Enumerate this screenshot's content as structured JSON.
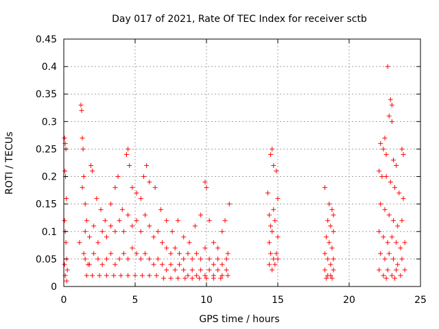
{
  "chart_data": {
    "type": "scatter",
    "title": "Day 017 of 2021, Rate Of TEC Index for receiver sctb",
    "xlabel": "GPS time / hours",
    "ylabel": "ROTI / TECUs",
    "xlim": [
      0,
      25
    ],
    "ylim": [
      0,
      0.45
    ],
    "xticks": [
      0,
      5,
      10,
      15,
      20,
      25
    ],
    "yticks": [
      0,
      0.05,
      0.1,
      0.15,
      0.2,
      0.25,
      0.3,
      0.35,
      0.4,
      0.45
    ],
    "xtick_labels": [
      "0",
      "5",
      "10",
      "15",
      "20",
      "25"
    ],
    "ytick_labels": [
      "0",
      "0.05",
      "0.1",
      "0.15",
      "0.2",
      "0.25",
      "0.3",
      "0.35",
      "0.4",
      "0.45"
    ],
    "grid": true,
    "marker": "plus",
    "color": "#ff0000",
    "series": [
      {
        "points": [
          [
            0.05,
            0.27
          ],
          [
            0.1,
            0.26
          ],
          [
            0.15,
            0.25
          ],
          [
            0.08,
            0.21
          ],
          [
            0.12,
            0.2
          ],
          [
            0.18,
            0.16
          ],
          [
            0.05,
            0.12
          ],
          [
            0.1,
            0.1
          ],
          [
            0.15,
            0.08
          ],
          [
            0.2,
            0.05
          ],
          [
            0.05,
            0.04
          ],
          [
            0.1,
            0.02
          ],
          [
            0.2,
            0.01
          ],
          [
            0.25,
            0.03
          ],
          [
            1.2,
            0.33
          ],
          [
            1.25,
            0.32
          ],
          [
            1.3,
            0.27
          ],
          [
            1.35,
            0.25
          ],
          [
            1.4,
            0.2
          ],
          [
            1.3,
            0.18
          ],
          [
            1.5,
            0.15
          ],
          [
            1.6,
            0.12
          ],
          [
            1.1,
            0.08
          ],
          [
            1.4,
            0.06
          ],
          [
            1.7,
            0.04
          ],
          [
            1.9,
            0.22
          ],
          [
            2.0,
            0.21
          ],
          [
            2.3,
            0.16
          ],
          [
            2.6,
            0.14
          ],
          [
            2.9,
            0.12
          ],
          [
            3.3,
            0.15
          ],
          [
            3.6,
            0.18
          ],
          [
            3.8,
            0.2
          ],
          [
            4.1,
            0.14
          ],
          [
            4.4,
            0.24
          ],
          [
            4.5,
            0.25
          ],
          [
            4.6,
            0.22
          ],
          [
            4.8,
            0.18
          ],
          [
            5.1,
            0.17
          ],
          [
            5.4,
            0.16
          ],
          [
            5.6,
            0.2
          ],
          [
            5.8,
            0.22
          ],
          [
            6.0,
            0.19
          ],
          [
            6.4,
            0.18
          ],
          [
            6.8,
            0.14
          ],
          [
            7.2,
            0.12
          ],
          [
            7.6,
            0.1
          ],
          [
            8.0,
            0.12
          ],
          [
            8.4,
            0.09
          ],
          [
            8.8,
            0.08
          ],
          [
            9.2,
            0.11
          ],
          [
            9.6,
            0.13
          ],
          [
            9.9,
            0.19
          ],
          [
            10.0,
            0.18
          ],
          [
            10.2,
            0.12
          ],
          [
            10.5,
            0.08
          ],
          [
            10.8,
            0.07
          ],
          [
            11.1,
            0.1
          ],
          [
            11.3,
            0.12
          ],
          [
            11.6,
            0.15
          ],
          [
            11.5,
            0.06
          ],
          [
            1.5,
            0.1
          ],
          [
            1.8,
            0.09
          ],
          [
            2.1,
            0.11
          ],
          [
            2.4,
            0.08
          ],
          [
            2.7,
            0.1
          ],
          [
            3.0,
            0.09
          ],
          [
            3.3,
            0.11
          ],
          [
            3.6,
            0.1
          ],
          [
            3.9,
            0.12
          ],
          [
            4.2,
            0.1
          ],
          [
            4.5,
            0.13
          ],
          [
            4.8,
            0.11
          ],
          [
            5.1,
            0.12
          ],
          [
            5.4,
            0.1
          ],
          [
            5.7,
            0.13
          ],
          [
            6.0,
            0.11
          ],
          [
            6.3,
            0.09
          ],
          [
            6.6,
            0.1
          ],
          [
            6.9,
            0.08
          ],
          [
            7.2,
            0.07
          ],
          [
            7.5,
            0.06
          ],
          [
            7.8,
            0.07
          ],
          [
            8.1,
            0.06
          ],
          [
            8.4,
            0.05
          ],
          [
            8.7,
            0.06
          ],
          [
            9.0,
            0.05
          ],
          [
            9.3,
            0.06
          ],
          [
            9.6,
            0.05
          ],
          [
            9.9,
            0.07
          ],
          [
            10.2,
            0.05
          ],
          [
            10.5,
            0.04
          ],
          [
            10.8,
            0.05
          ],
          [
            11.1,
            0.04
          ],
          [
            11.4,
            0.05
          ],
          [
            1.5,
            0.05
          ],
          [
            1.8,
            0.04
          ],
          [
            2.1,
            0.06
          ],
          [
            2.4,
            0.05
          ],
          [
            2.7,
            0.04
          ],
          [
            3.0,
            0.05
          ],
          [
            3.3,
            0.06
          ],
          [
            3.6,
            0.04
          ],
          [
            3.9,
            0.05
          ],
          [
            4.2,
            0.06
          ],
          [
            4.5,
            0.05
          ],
          [
            4.8,
            0.07
          ],
          [
            5.1,
            0.06
          ],
          [
            5.4,
            0.05
          ],
          [
            5.7,
            0.06
          ],
          [
            6.0,
            0.05
          ],
          [
            6.3,
            0.04
          ],
          [
            6.6,
            0.05
          ],
          [
            6.9,
            0.04
          ],
          [
            7.2,
            0.03
          ],
          [
            7.5,
            0.04
          ],
          [
            7.8,
            0.03
          ],
          [
            8.1,
            0.04
          ],
          [
            8.4,
            0.03
          ],
          [
            8.7,
            0.02
          ],
          [
            9.0,
            0.03
          ],
          [
            9.3,
            0.02
          ],
          [
            9.6,
            0.03
          ],
          [
            9.9,
            0.02
          ],
          [
            10.2,
            0.03
          ],
          [
            10.5,
            0.02
          ],
          [
            10.8,
            0.03
          ],
          [
            11.1,
            0.02
          ],
          [
            11.4,
            0.03
          ],
          [
            1.6,
            0.02
          ],
          [
            2.0,
            0.02
          ],
          [
            2.5,
            0.02
          ],
          [
            3.0,
            0.02
          ],
          [
            3.5,
            0.02
          ],
          [
            4.0,
            0.02
          ],
          [
            4.5,
            0.02
          ],
          [
            5.0,
            0.02
          ],
          [
            5.5,
            0.02
          ],
          [
            6.0,
            0.02
          ],
          [
            6.5,
            0.02
          ],
          [
            7.0,
            0.015
          ],
          [
            7.5,
            0.015
          ],
          [
            8.0,
            0.015
          ],
          [
            8.5,
            0.015
          ],
          [
            9.0,
            0.015
          ],
          [
            9.5,
            0.015
          ],
          [
            10.0,
            0.015
          ],
          [
            10.5,
            0.015
          ],
          [
            11.0,
            0.015
          ],
          [
            11.5,
            0.02
          ],
          [
            14.3,
            0.17
          ],
          [
            14.5,
            0.24
          ],
          [
            14.6,
            0.25
          ],
          [
            14.7,
            0.22
          ],
          [
            14.9,
            0.21
          ],
          [
            15.0,
            0.16
          ],
          [
            14.4,
            0.13
          ],
          [
            14.6,
            0.1
          ],
          [
            14.8,
            0.12
          ],
          [
            15.0,
            0.09
          ],
          [
            14.4,
            0.08
          ],
          [
            14.5,
            0.06
          ],
          [
            14.7,
            0.05
          ],
          [
            14.9,
            0.06
          ],
          [
            14.4,
            0.04
          ],
          [
            14.6,
            0.03
          ],
          [
            14.8,
            0.04
          ],
          [
            15.0,
            0.05
          ],
          [
            14.5,
            0.11
          ],
          [
            14.7,
            0.14
          ],
          [
            18.3,
            0.18
          ],
          [
            18.6,
            0.15
          ],
          [
            18.8,
            0.14
          ],
          [
            18.5,
            0.12
          ],
          [
            18.7,
            0.11
          ],
          [
            18.9,
            0.13
          ],
          [
            18.4,
            0.09
          ],
          [
            18.6,
            0.08
          ],
          [
            18.8,
            0.07
          ],
          [
            18.9,
            0.1
          ],
          [
            18.3,
            0.06
          ],
          [
            18.5,
            0.05
          ],
          [
            18.7,
            0.04
          ],
          [
            18.9,
            0.05
          ],
          [
            18.3,
            0.03
          ],
          [
            18.5,
            0.02
          ],
          [
            18.7,
            0.02
          ],
          [
            18.9,
            0.03
          ],
          [
            18.4,
            0.015
          ],
          [
            18.8,
            0.015
          ],
          [
            22.7,
            0.4
          ],
          [
            22.9,
            0.34
          ],
          [
            23.0,
            0.33
          ],
          [
            22.8,
            0.31
          ],
          [
            23.0,
            0.3
          ],
          [
            22.5,
            0.27
          ],
          [
            22.2,
            0.26
          ],
          [
            22.4,
            0.25
          ],
          [
            22.6,
            0.24
          ],
          [
            23.1,
            0.23
          ],
          [
            23.3,
            0.22
          ],
          [
            23.7,
            0.25
          ],
          [
            23.8,
            0.24
          ],
          [
            22.1,
            0.21
          ],
          [
            22.3,
            0.2
          ],
          [
            22.6,
            0.2
          ],
          [
            22.9,
            0.19
          ],
          [
            23.2,
            0.18
          ],
          [
            23.5,
            0.17
          ],
          [
            23.8,
            0.16
          ],
          [
            22.2,
            0.15
          ],
          [
            22.5,
            0.14
          ],
          [
            22.8,
            0.13
          ],
          [
            23.1,
            0.12
          ],
          [
            23.4,
            0.11
          ],
          [
            23.7,
            0.12
          ],
          [
            22.1,
            0.1
          ],
          [
            22.4,
            0.09
          ],
          [
            22.7,
            0.08
          ],
          [
            23.0,
            0.09
          ],
          [
            23.3,
            0.08
          ],
          [
            23.6,
            0.07
          ],
          [
            23.9,
            0.08
          ],
          [
            22.2,
            0.06
          ],
          [
            22.5,
            0.05
          ],
          [
            22.8,
            0.06
          ],
          [
            23.1,
            0.05
          ],
          [
            23.4,
            0.04
          ],
          [
            23.7,
            0.05
          ],
          [
            22.1,
            0.03
          ],
          [
            22.4,
            0.02
          ],
          [
            22.7,
            0.03
          ],
          [
            23.0,
            0.02
          ],
          [
            23.3,
            0.03
          ],
          [
            23.6,
            0.02
          ],
          [
            23.9,
            0.03
          ],
          [
            22.6,
            0.015
          ],
          [
            23.2,
            0.015
          ]
        ]
      }
    ]
  }
}
